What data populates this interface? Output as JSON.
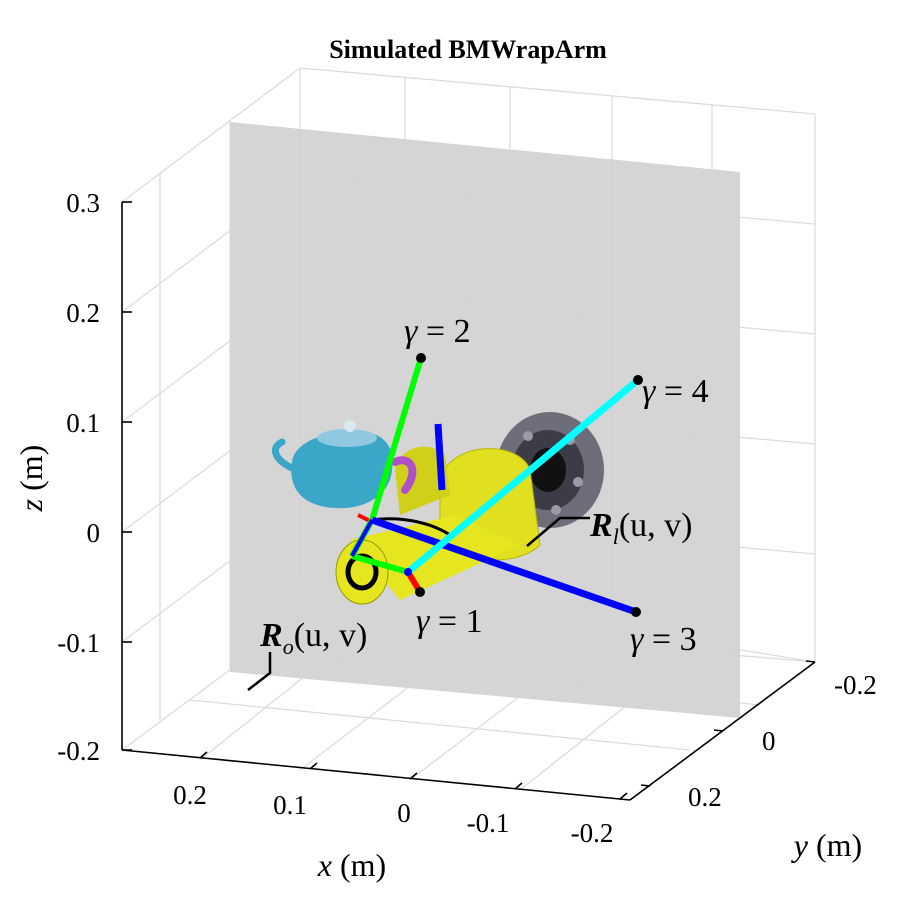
{
  "chart_data": {
    "type": "3d-scene",
    "title": "Simulated BMWrapArm",
    "x_axis": {
      "label_var": "x",
      "label_unit": "(m)",
      "ticks": [
        {
          "value": 0.2,
          "label": "0.2"
        },
        {
          "value": 0.1,
          "label": "0.1"
        },
        {
          "value": 0,
          "label": "0"
        },
        {
          "value": -0.1,
          "label": "-0.1"
        },
        {
          "value": -0.2,
          "label": "-0.2"
        }
      ]
    },
    "y_axis": {
      "label_var": "y",
      "label_unit": "(m)",
      "ticks": [
        {
          "value": -0.2,
          "label": "-0.2"
        },
        {
          "value": 0,
          "label": "0"
        },
        {
          "value": 0.2,
          "label": "0.2"
        }
      ]
    },
    "z_axis": {
      "label_var": "z",
      "label_unit": "(m)",
      "ticks": [
        {
          "value": 0.3,
          "label": "0.3"
        },
        {
          "value": 0.2,
          "label": "0.2"
        },
        {
          "value": 0.1,
          "label": "0.1"
        },
        {
          "value": 0,
          "label": "0"
        },
        {
          "value": -0.1,
          "label": "-0.1"
        },
        {
          "value": -0.2,
          "label": "-0.2"
        }
      ]
    },
    "grid": true,
    "links": [
      {
        "id": "gamma-1",
        "label_sym": "γ",
        "label_rest": " = 1",
        "color": "#ff0000"
      },
      {
        "id": "gamma-2",
        "label_sym": "γ",
        "label_rest": " = 2",
        "color": "#00ff00"
      },
      {
        "id": "gamma-3",
        "label_sym": "γ",
        "label_rest": " = 3",
        "color": "#0000ff"
      },
      {
        "id": "gamma-4",
        "label_sym": "γ",
        "label_rest": " = 4",
        "color": "#00ffff"
      }
    ],
    "surfaces": [
      {
        "id": "R-o",
        "label_main": "R",
        "label_sub": "o",
        "label_args": "(u, v)"
      },
      {
        "id": "R-l",
        "label_main": "R",
        "label_sub": "l",
        "label_args": "(u, v)"
      }
    ],
    "colors": {
      "wall": "#d3d3d3",
      "arm_body": "#e6e620",
      "teapot": "#3aa6c8",
      "teapot_handle": "#b050c8",
      "wheel": "#6e6e7a",
      "grid": "#dcdcdc"
    }
  }
}
